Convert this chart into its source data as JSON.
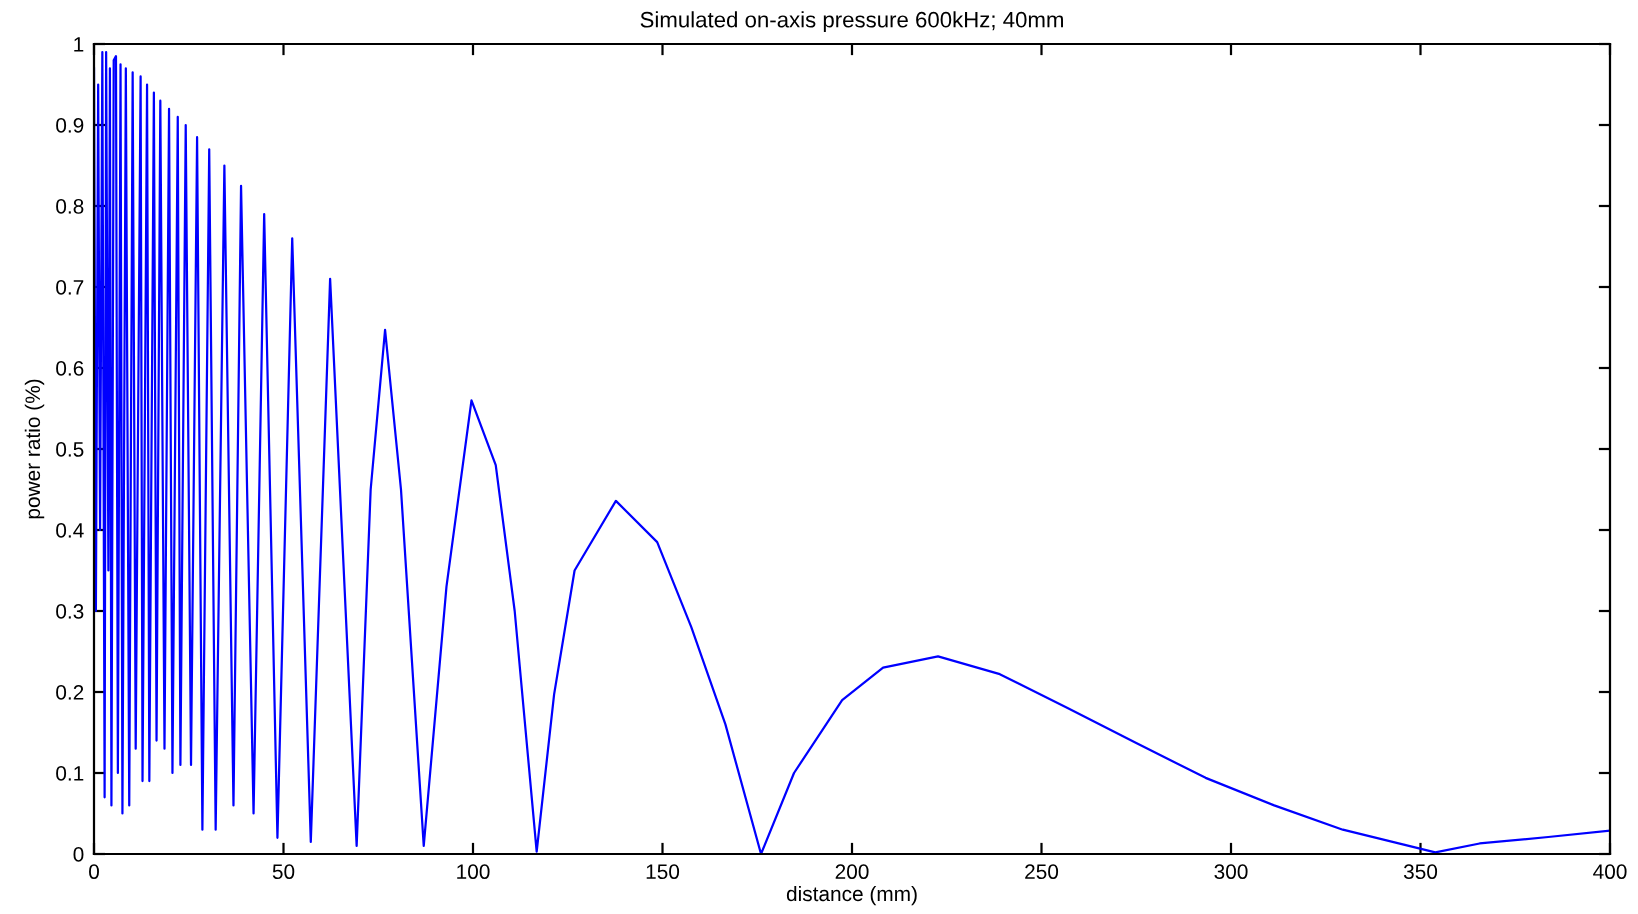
{
  "chart_data": {
    "type": "line",
    "title": "Simulated on-axis pressure 600kHz; 40mm",
    "xlabel": "distance (mm)",
    "ylabel": "power ratio (%)",
    "x": [
      0,
      0.5,
      1.1,
      1.6,
      2.2,
      2.8,
      3.2,
      3.8,
      4.2,
      4.6,
      5.2,
      5.8,
      6.3,
      7,
      7.5,
      8.4,
      9.3,
      10.2,
      11,
      12.3,
      12.8,
      14,
      14.6,
      15.8,
      16.5,
      17.5,
      18.6,
      19.8,
      20.7,
      22.1,
      22.8,
      24.2,
      25.6,
      27.2,
      28.6,
      30.4,
      32.1,
      34.4,
      36.8,
      38.8,
      42.1,
      44.9,
      48.4,
      52.3,
      57.2,
      62.3,
      69.3,
      73,
      76.8,
      81,
      87,
      93,
      99.6,
      106,
      111,
      116.8,
      121.4,
      126.8,
      137.7,
      148.6,
      157.6,
      166.6,
      176,
      184.7,
      197.4,
      208.2,
      222.7,
      239,
      257,
      275,
      293.3,
      311.4,
      329.5,
      353.9,
      365.6,
      383.7,
      400
    ],
    "series": [
      {
        "color": "#0000ff",
        "values": [
          0.97,
          0.3,
          0.95,
          0.4,
          0.99,
          0.07,
          0.99,
          0.35,
          0.97,
          0.06,
          0.98,
          0.985,
          0.1,
          0.975,
          0.05,
          0.97,
          0.06,
          0.965,
          0.13,
          0.96,
          0.09,
          0.95,
          0.09,
          0.94,
          0.14,
          0.93,
          0.13,
          0.92,
          0.1,
          0.91,
          0.11,
          0.9,
          0.11,
          0.885,
          0.03,
          0.87,
          0.03,
          0.85,
          0.06,
          0.825,
          0.05,
          0.79,
          0.02,
          0.76,
          0.015,
          0.71,
          0.01,
          0.45,
          0.647,
          0.45,
          0.01,
          0.33,
          0.56,
          0.48,
          0.3,
          0.003,
          0.197,
          0.35,
          0.436,
          0.385,
          0.28,
          0.16,
          0,
          0.1,
          0.19,
          0.23,
          0.244,
          0.222,
          0.18,
          0.137,
          0.094,
          0.06,
          0.03,
          0.002,
          0.013,
          0.021,
          0.029
        ]
      }
    ],
    "xlim": [
      0,
      400
    ],
    "xticks": [
      0,
      50,
      100,
      150,
      200,
      250,
      300,
      350,
      400
    ],
    "ylim": [
      0,
      1
    ],
    "yticks": [
      0,
      0.1,
      0.2,
      0.3,
      0.4,
      0.5,
      0.6,
      0.7,
      0.8,
      0.9,
      1
    ],
    "grid": false,
    "legend": false,
    "line_style": "solid",
    "marker": "none"
  }
}
